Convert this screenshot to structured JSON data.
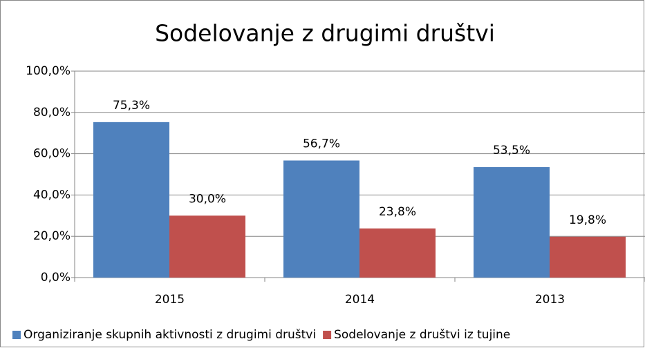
{
  "chart_data": {
    "type": "bar",
    "title": "Sodelovanje z drugimi društvi",
    "categories": [
      "2015",
      "2014",
      "2013"
    ],
    "series": [
      {
        "name": "Organiziranje skupnih aktivnosti z drugimi društvi",
        "color": "#4f81bd",
        "values": [
          75.3,
          56.7,
          53.5
        ],
        "value_labels": [
          "75,3%",
          "56,7%",
          "53,5%"
        ]
      },
      {
        "name": "Sodelovanje z društvi iz tujine",
        "color": "#c0504d",
        "values": [
          30.0,
          23.8,
          19.8
        ],
        "value_labels": [
          "30,0%",
          "23,8%",
          "19,8%"
        ]
      }
    ],
    "ylim": [
      0,
      100
    ],
    "yticks": [
      {
        "value": 0,
        "label": "0,0%"
      },
      {
        "value": 20,
        "label": "20,0%"
      },
      {
        "value": 40,
        "label": "40,0%"
      },
      {
        "value": 60,
        "label": "60,0%"
      },
      {
        "value": 80,
        "label": "80,0%"
      },
      {
        "value": 100,
        "label": "100,0%"
      }
    ],
    "grid": true,
    "legend": "bottom"
  }
}
